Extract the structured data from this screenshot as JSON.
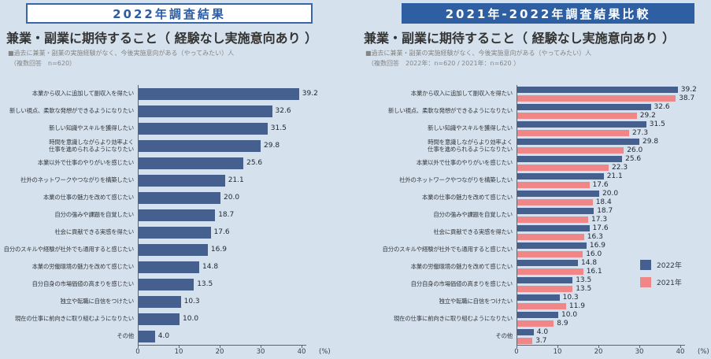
{
  "left_panel": {
    "header": "2022年調査結果",
    "title": "兼業・副業に期待すること（ 経験なし実施意向あり ）",
    "note_line1": "■過去に兼業・副業の実施経験がなく、今後実施意向がある（やってみたい）人",
    "note_line2": "（複数回答　n=620）"
  },
  "right_panel": {
    "header": "2021年-2022年調査結果比較",
    "title": "兼業・副業に期待すること（ 経験なし実施意向あり ）",
    "note_line1": "■過去に兼業・副業の実施経験がなく、今後実施意向がある（やってみたい）人",
    "note_line2": "（複数回答　2022年：n=620 / 2021年：n=620 ）"
  },
  "colors": {
    "background": "#d5e1ec",
    "bar_2022": "#45608f",
    "bar_2021": "#f08688",
    "header_blue": "#2e5fa3",
    "header_text_blue": "#2b5ca6",
    "axis": "#5a6570"
  },
  "chart_data": [
    {
      "type": "bar",
      "orientation": "horizontal",
      "title": "2022年調査結果",
      "categories": [
        "本業から収入に追加して副収入を得たい",
        "新しい視点、柔軟な発想ができるようになりたい",
        "新しい知識やスキルを獲得したい",
        "時間を意識しながらより効率よく\n仕事を進められるようになりたい",
        "本業以外で仕事のやりがいを感じたい",
        "社外のネットワークやつながりを構築したい",
        "本業の仕事の魅力を改めて感じたい",
        "自分の強みや課題を自覚したい",
        "社会に貢献できる実感を得たい",
        "自分のスキルや経験が社外でも通用すると感じたい",
        "本業の労働環境の魅力を改めて感じたい",
        "自分自身の市場価値の高まりを感じたい",
        "独立や転職に自信をつけたい",
        "現在の仕事に前向きに取り組むようになりたい",
        "その他"
      ],
      "values": [
        39.2,
        32.6,
        31.5,
        29.8,
        25.6,
        21.1,
        20.0,
        18.7,
        17.6,
        16.9,
        14.8,
        13.5,
        10.3,
        10.0,
        4.0
      ],
      "bar_color": "#45608f",
      "xlabel": "",
      "ylabel": "",
      "xlim": [
        0,
        40
      ],
      "xticks": [
        0,
        10,
        20,
        30,
        40
      ],
      "unit": "(%)",
      "grid": false,
      "legend_position": "none"
    },
    {
      "type": "bar",
      "orientation": "horizontal",
      "title": "2021年-2022年調査結果比較",
      "categories": [
        "本業から収入に追加して副収入を得たい",
        "新しい視点、柔軟な発想ができるようになりたい",
        "新しい知識やスキルを獲得したい",
        "時間を意識しながらより効率よく\n仕事を進められるようになりたい",
        "本業以外で仕事のやりがいを感じたい",
        "社外のネットワークやつながりを構築したい",
        "本業の仕事の魅力を改めて感じたい",
        "自分の強みや課題を自覚したい",
        "社会に貢献できる実感を得たい",
        "自分のスキルや経験が社外でも通用すると感じたい",
        "本業の労働環境の魅力を改めて感じたい",
        "自分自身の市場価値の高まりを感じたい",
        "独立や転職に自信をつけたい",
        "現在の仕事に前向きに取り組むようになりたい",
        "その他"
      ],
      "series": [
        {
          "name": "2022年",
          "color": "#45608f",
          "values": [
            39.2,
            32.6,
            31.5,
            29.8,
            25.6,
            21.1,
            20.0,
            18.7,
            17.6,
            16.9,
            14.8,
            13.5,
            10.3,
            10.0,
            4.0
          ]
        },
        {
          "name": "2021年",
          "color": "#f08688",
          "values": [
            38.7,
            29.2,
            27.3,
            26.0,
            22.3,
            17.6,
            18.4,
            17.3,
            16.3,
            16.0,
            16.1,
            13.5,
            11.9,
            8.9,
            3.7
          ]
        }
      ],
      "xlabel": "",
      "ylabel": "",
      "xlim": [
        0,
        40
      ],
      "xticks": [
        0,
        10,
        20,
        30,
        40
      ],
      "unit": "(%)",
      "grid": false,
      "legend_position": "middle-right"
    }
  ]
}
